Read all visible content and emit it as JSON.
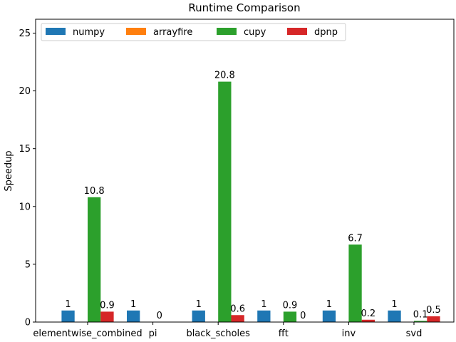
{
  "chart_data": {
    "type": "bar",
    "title": "Runtime Comparison",
    "xlabel": "",
    "ylabel": "Speedup",
    "ylim": [
      0,
      26.2
    ],
    "yticks": [
      0,
      5,
      10,
      15,
      20,
      25
    ],
    "categories": [
      "elementwise_combined",
      "pi",
      "black_scholes",
      "fft",
      "inv",
      "svd"
    ],
    "series": [
      {
        "name": "numpy",
        "color": "#1f77b4",
        "values": [
          1,
          1,
          1,
          1,
          1,
          1
        ],
        "labels": [
          "1",
          "1",
          "1",
          "1",
          "1",
          "1"
        ]
      },
      {
        "name": "arrayfire",
        "color": "#ff7f0e",
        "values": [
          null,
          null,
          null,
          null,
          null,
          null
        ],
        "labels": [
          "",
          "",
          "",
          "",
          "",
          ""
        ]
      },
      {
        "name": "cupy",
        "color": "#2ca02c",
        "values": [
          10.8,
          0,
          20.8,
          0.9,
          6.7,
          0.1
        ],
        "labels": [
          "10.8",
          "0",
          "20.8",
          "0.9",
          "6.7",
          "0.1"
        ]
      },
      {
        "name": "dpnp",
        "color": "#d62728",
        "values": [
          0.9,
          null,
          0.6,
          0,
          0.2,
          0.5
        ],
        "labels": [
          "0.9",
          "",
          "0.6",
          "0",
          "0.2",
          "0.5"
        ]
      }
    ],
    "grid": false,
    "legend_position": "top"
  }
}
